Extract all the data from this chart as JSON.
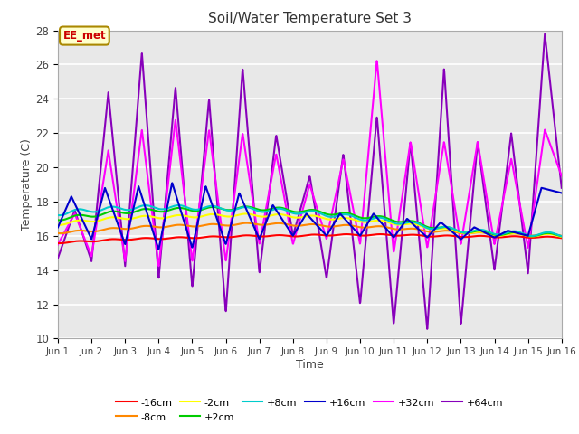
{
  "title": "Soil/Water Temperature Set 3",
  "xlabel": "Time",
  "ylabel": "Temperature (C)",
  "ylim": [
    10,
    28
  ],
  "xlim": [
    0,
    15
  ],
  "xtick_labels": [
    "Jun 1",
    "Jun 2",
    "Jun 3",
    "Jun 4",
    "Jun 5",
    "Jun 6",
    "Jun 7",
    "Jun 8",
    "Jun 9",
    "Jun 10",
    "Jun 11",
    "Jun 12",
    "Jun 13",
    "Jun 14",
    "Jun 15",
    "Jun 16"
  ],
  "ytick_values": [
    10,
    12,
    14,
    16,
    18,
    20,
    22,
    24,
    26,
    28
  ],
  "annotation_text": "EE_met",
  "fig_bg": "#ffffff",
  "plot_bg": "#e8e8e8",
  "grid_color": "#ffffff",
  "series_colors": {
    "-16cm": "#ff0000",
    "-8cm": "#ff8800",
    "-2cm": "#ffff00",
    "+2cm": "#00cc00",
    "+8cm": "#00cccc",
    "+16cm": "#0000cc",
    "+32cm": "#ff00ff",
    "+64cm": "#8800bb"
  },
  "legend_order": [
    "-16cm",
    "-8cm",
    "-2cm",
    "+2cm",
    "+8cm",
    "+16cm",
    "+32cm",
    "+64cm"
  ]
}
